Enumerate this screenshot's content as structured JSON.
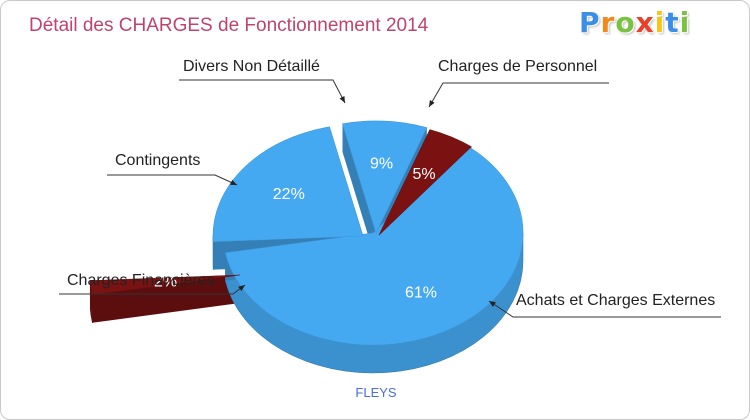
{
  "header": {
    "title": "Détail des CHARGES de Fonctionnement 2014",
    "logo": {
      "text": "Proxiti",
      "letters": [
        {
          "ch": "P",
          "color": "#3b8ee8"
        },
        {
          "ch": "r",
          "color": "#f08a1c"
        },
        {
          "ch": "o",
          "color": "#7cc242"
        },
        {
          "ch": "x",
          "color": "#e8402a"
        },
        {
          "ch": "i",
          "color": "#f5c518"
        },
        {
          "ch": "t",
          "color": "#3b8ee8"
        },
        {
          "ch": "i",
          "color": "#7cc242"
        }
      ]
    }
  },
  "footer": {
    "label": "FLEYS"
  },
  "colors": {
    "blue": "#45a9f2",
    "dark_red": "#7a1212",
    "label_text": "#222222",
    "pct_text": "#ffffff"
  },
  "chart_data": {
    "type": "pie",
    "title": "Détail des CHARGES de Fonctionnement 2014",
    "subtitle": "FLEYS",
    "slices": [
      {
        "label": "Achats et Charges Externes",
        "value": 61,
        "pct_label": "61%",
        "color": "#45a9f2"
      },
      {
        "label": "Charges Financières",
        "value": 2,
        "pct_label": "2%",
        "color": "#7a1212"
      },
      {
        "label": "Contingents",
        "value": 22,
        "pct_label": "22%",
        "color": "#45a9f2"
      },
      {
        "label": "Divers Non Détaillé",
        "value": 9,
        "pct_label": "9%",
        "color": "#45a9f2"
      },
      {
        "label": "Charges de Personnel",
        "value": 5,
        "pct_label": "5%",
        "color": "#7a1212"
      }
    ]
  }
}
